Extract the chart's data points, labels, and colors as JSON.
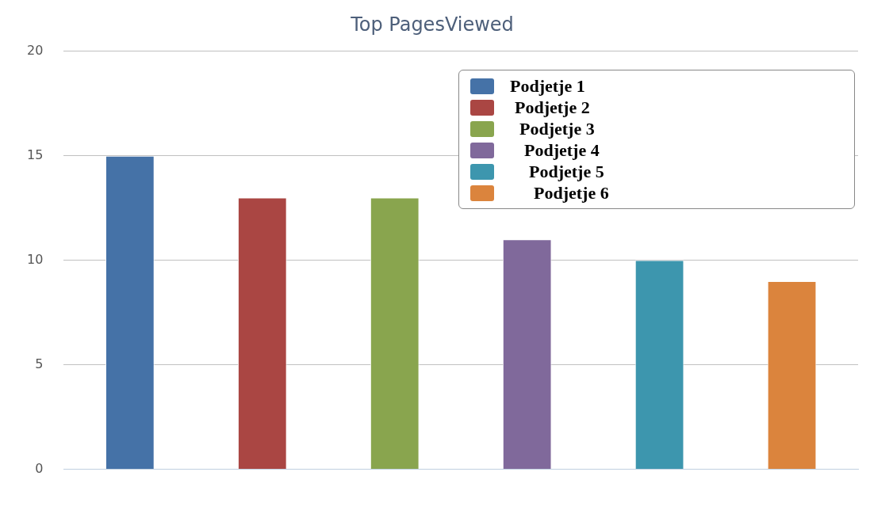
{
  "chart_data": {
    "type": "bar",
    "title": "Top PagesViewed",
    "categories": [
      null,
      null,
      null,
      null,
      null,
      null
    ],
    "series": [
      {
        "name": "Podjetje 1",
        "color": "#4572a7",
        "values": [
          15,
          null,
          null,
          null,
          null,
          null
        ]
      },
      {
        "name": "Podjetje 2",
        "color": "#aa4643",
        "values": [
          null,
          13,
          null,
          null,
          null,
          null
        ]
      },
      {
        "name": "Podjetje 3",
        "color": "#89a54e",
        "values": [
          null,
          null,
          13,
          null,
          null,
          null
        ]
      },
      {
        "name": "Podjetje 4",
        "color": "#80699b",
        "values": [
          null,
          null,
          null,
          11,
          null,
          null
        ]
      },
      {
        "name": "Podjetje 5",
        "color": "#3d96ae",
        "values": [
          null,
          null,
          null,
          null,
          10,
          null
        ]
      },
      {
        "name": "Podjetje 6",
        "color": "#db843d",
        "values": [
          null,
          null,
          null,
          null,
          null,
          9
        ]
      }
    ],
    "ylim": [
      0,
      20
    ],
    "yticks": [
      0,
      5,
      10,
      15,
      20
    ],
    "grid": "y",
    "legend": "top right"
  }
}
